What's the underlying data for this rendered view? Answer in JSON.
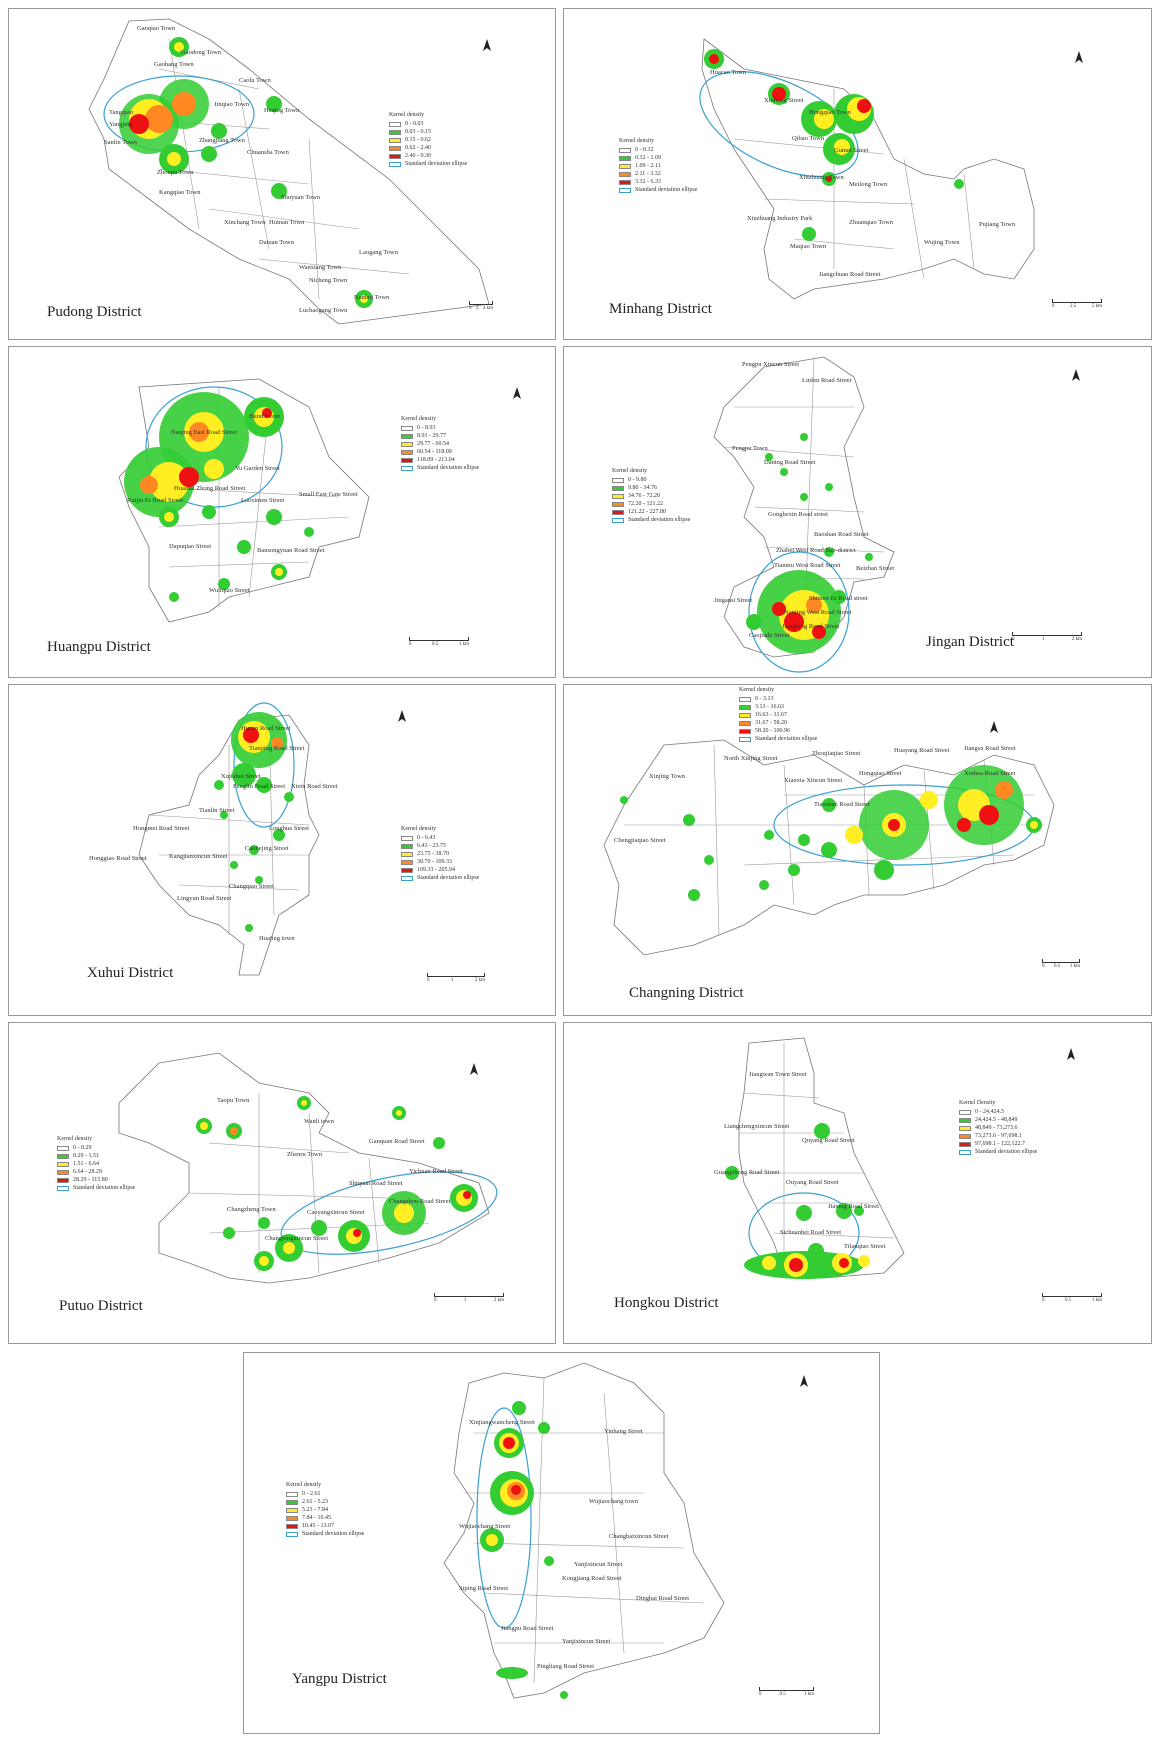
{
  "colors": {
    "class1": "#ffffff",
    "class2": "#33cc33",
    "class3": "#ffee22",
    "class4": "#ff8822",
    "class5": "#ee1111",
    "ellipse": "#3aa0d0"
  },
  "legend_common": {
    "title": "Kernel density",
    "ellipse_label": "Standard deviation ellipse"
  },
  "panels": {
    "pudong": {
      "title": "Pudong District",
      "legend": [
        "0 - 0.03",
        "0.03 - 0.15",
        "0.15 - 0.62",
        "0.62 - 2.40",
        "2.40 - 9.30"
      ],
      "scale": [
        "0",
        "2",
        "4 km"
      ],
      "labels": [
        "Gaoqiao Town",
        "Gaodong Town",
        "Gaohang Town",
        "Caolu Town",
        "Jinqiao Town",
        "Tangqiao",
        "Yangjing",
        "Sanlin Town",
        "Zhoupu Town",
        "Kangqiao Town",
        "Heqing Town",
        "Chuansha Town",
        "Zhangjiang Town",
        "Huinan Town",
        "Datuan Town",
        "Xinchang Town",
        "Nicheng Town",
        "Laogang Town",
        "Shuyuan Town",
        "Wanxiang Town",
        "Luchaogang Town",
        "Nanhui Town"
      ]
    },
    "minhang": {
      "title": "Minhang District",
      "legend": [
        "0 - 0.32",
        "0.32 - 1.09",
        "1.09 - 2.11",
        "2.11 - 3.32",
        "3.32 - 6.33"
      ],
      "scale": [
        "0",
        "2.5",
        "5 km"
      ],
      "labels": [
        "Huacao Town",
        "Xinhong Street",
        "Hongqiao Town",
        "Qibao Town",
        "Gumei Street",
        "Xinzhuang Town",
        "Meilong Town",
        "Xinzhuang Industry Park",
        "Zhuanqiao Town",
        "Wujing Town",
        "Pujiang Town",
        "Maqiao Town",
        "Jiangchuan Road Street"
      ]
    },
    "huangpu": {
      "title": "Huangpu District",
      "legend": [
        "0 - 8.93",
        "8.93 - 29.77",
        "29.77 - 60.54",
        "60.54 - 118.09",
        "118.09 - 213.04"
      ],
      "scale": [
        "0",
        "0.5",
        "1 km"
      ],
      "labels": [
        "Nanjing East Road Street",
        "Bund Street",
        "Yu Garden Street",
        "Huaihai Zhong Road Street",
        "Ruijin Er Road Street",
        "Laoximen Street",
        "Dapuqiao Street",
        "Small East Gate Street",
        "Bansongyuan Road Street",
        "Wuliqiao Street"
      ]
    },
    "jingan": {
      "title": "Jingan District",
      "legend": [
        "0 - 9.80",
        "9.80 - 34.76",
        "34.76 - 72.20",
        "72.20 - 121.22",
        "121.22 - 227.80"
      ],
      "scale": [
        "0",
        "1",
        "2 km"
      ],
      "labels": [
        "Pengpu Xincun Street",
        "Linfen Road Street",
        "Pengpu Town",
        "Daning Road Street",
        "Gonghexin Road street",
        "Baoshan Road Street",
        "Zhabei West Road Sub-district",
        "Tianmu West Road Street",
        "Beizhan Street",
        "Shimen Er Road street",
        "Nanjing West Road Street",
        "Jiangning Road Street",
        "Jingansi Street",
        "Caojiadu Street"
      ]
    },
    "xuhui": {
      "title": "Xuhui District",
      "legend": [
        "0 - 6.43",
        "6.43 - 23.75",
        "23.75 - 38.70",
        "38.70 - 109.33",
        "109.33 - 205.94"
      ],
      "scale": [
        "0",
        "1",
        "2 km"
      ],
      "labels": [
        "Hunan Road Street",
        "Tianping Road Street",
        "Xujiahui Street",
        "Fenglin Road Street",
        "Xietu Road Street",
        "Tianlin Street",
        "Hongmei Road Street",
        "Longhua Street",
        "Caohejing Street",
        "Honggiao Road Street",
        "Kangjianxincun Street",
        "Changqiao Street",
        "Lingyun Road Street",
        "Huajing town"
      ]
    },
    "changning": {
      "title": "Changning District",
      "legend": [
        "0 - 3.13",
        "3.13 - 16.63",
        "16.63 - 31.67",
        "31.67 - 58.20",
        "58.20 - 100.96"
      ],
      "scale": [
        "0",
        "0.5",
        "1 km"
      ],
      "labels": [
        "North Xinjing Street",
        "Xinjing Town",
        "Zhoujiaqiao Street",
        "Jiangsu Road Street",
        "Huayang Road Street",
        "Xinhua Road Street",
        "Hongqiao Street",
        "Xianxia Xincun Street",
        "Tianshan Road Street",
        "Chengjiaqiao Street"
      ]
    },
    "putuo": {
      "title": "Putuo District",
      "legend": [
        "0 - 0.29",
        "0.29 - 1.51",
        "1.51 - 6.64",
        "6.64 - 28.29",
        "28.29 - 115.80"
      ],
      "scale": [
        "0",
        "1",
        "2 km"
      ],
      "labels": [
        "Taopu Town",
        "Zhenru Town",
        "Wanli town",
        "Ganquan Road Street",
        "Yichuan Road Street",
        "Shiquan Road Street",
        "Changzheng Town",
        "Caoyangxincun Street",
        "Changshou Road Street",
        "Changfengxincun Street"
      ]
    },
    "hongkou": {
      "title": "Hongkou District",
      "legend": [
        "0 - 24,424.5",
        "24,424.5 - 48,849",
        "48,849 - 73,273.6",
        "73,273.6 - 97,698.1",
        "97,698.1 - 122,122.7"
      ],
      "scale": [
        "0",
        "0.5",
        "1 km"
      ],
      "legend_title": "Kernel Density",
      "labels": [
        "Jiangwan Town Street",
        "Liangchengxincun Street",
        "Quyang Road Street",
        "Guangzhong Road Street",
        "Ouyang Road Street",
        "Jiaxing Road Street",
        "Sichuanbei Road Street",
        "Tilanqiao Street"
      ]
    },
    "yangpu": {
      "title": "Yangpu District",
      "legend": [
        "0 - 2.61",
        "2.61 - 5.23",
        "5.23 - 7.84",
        "7.84 - 10.45",
        "10.45 - 13.07"
      ],
      "scale": [
        "0",
        "0.5",
        "1 km"
      ],
      "labels": [
        "Xinjiangwancheng Street",
        "Yinhang Street",
        "Wujiaochang town",
        "Wujiaochang Street",
        "Changbaixincun Street",
        "Yanjixincun Street",
        "Kongjiang Road Street",
        "Siping Road Street",
        "Dinghai Road Street",
        "Jiangpu Road Street",
        "Yanjixincun Street",
        "Pingliang Road Street"
      ]
    }
  }
}
